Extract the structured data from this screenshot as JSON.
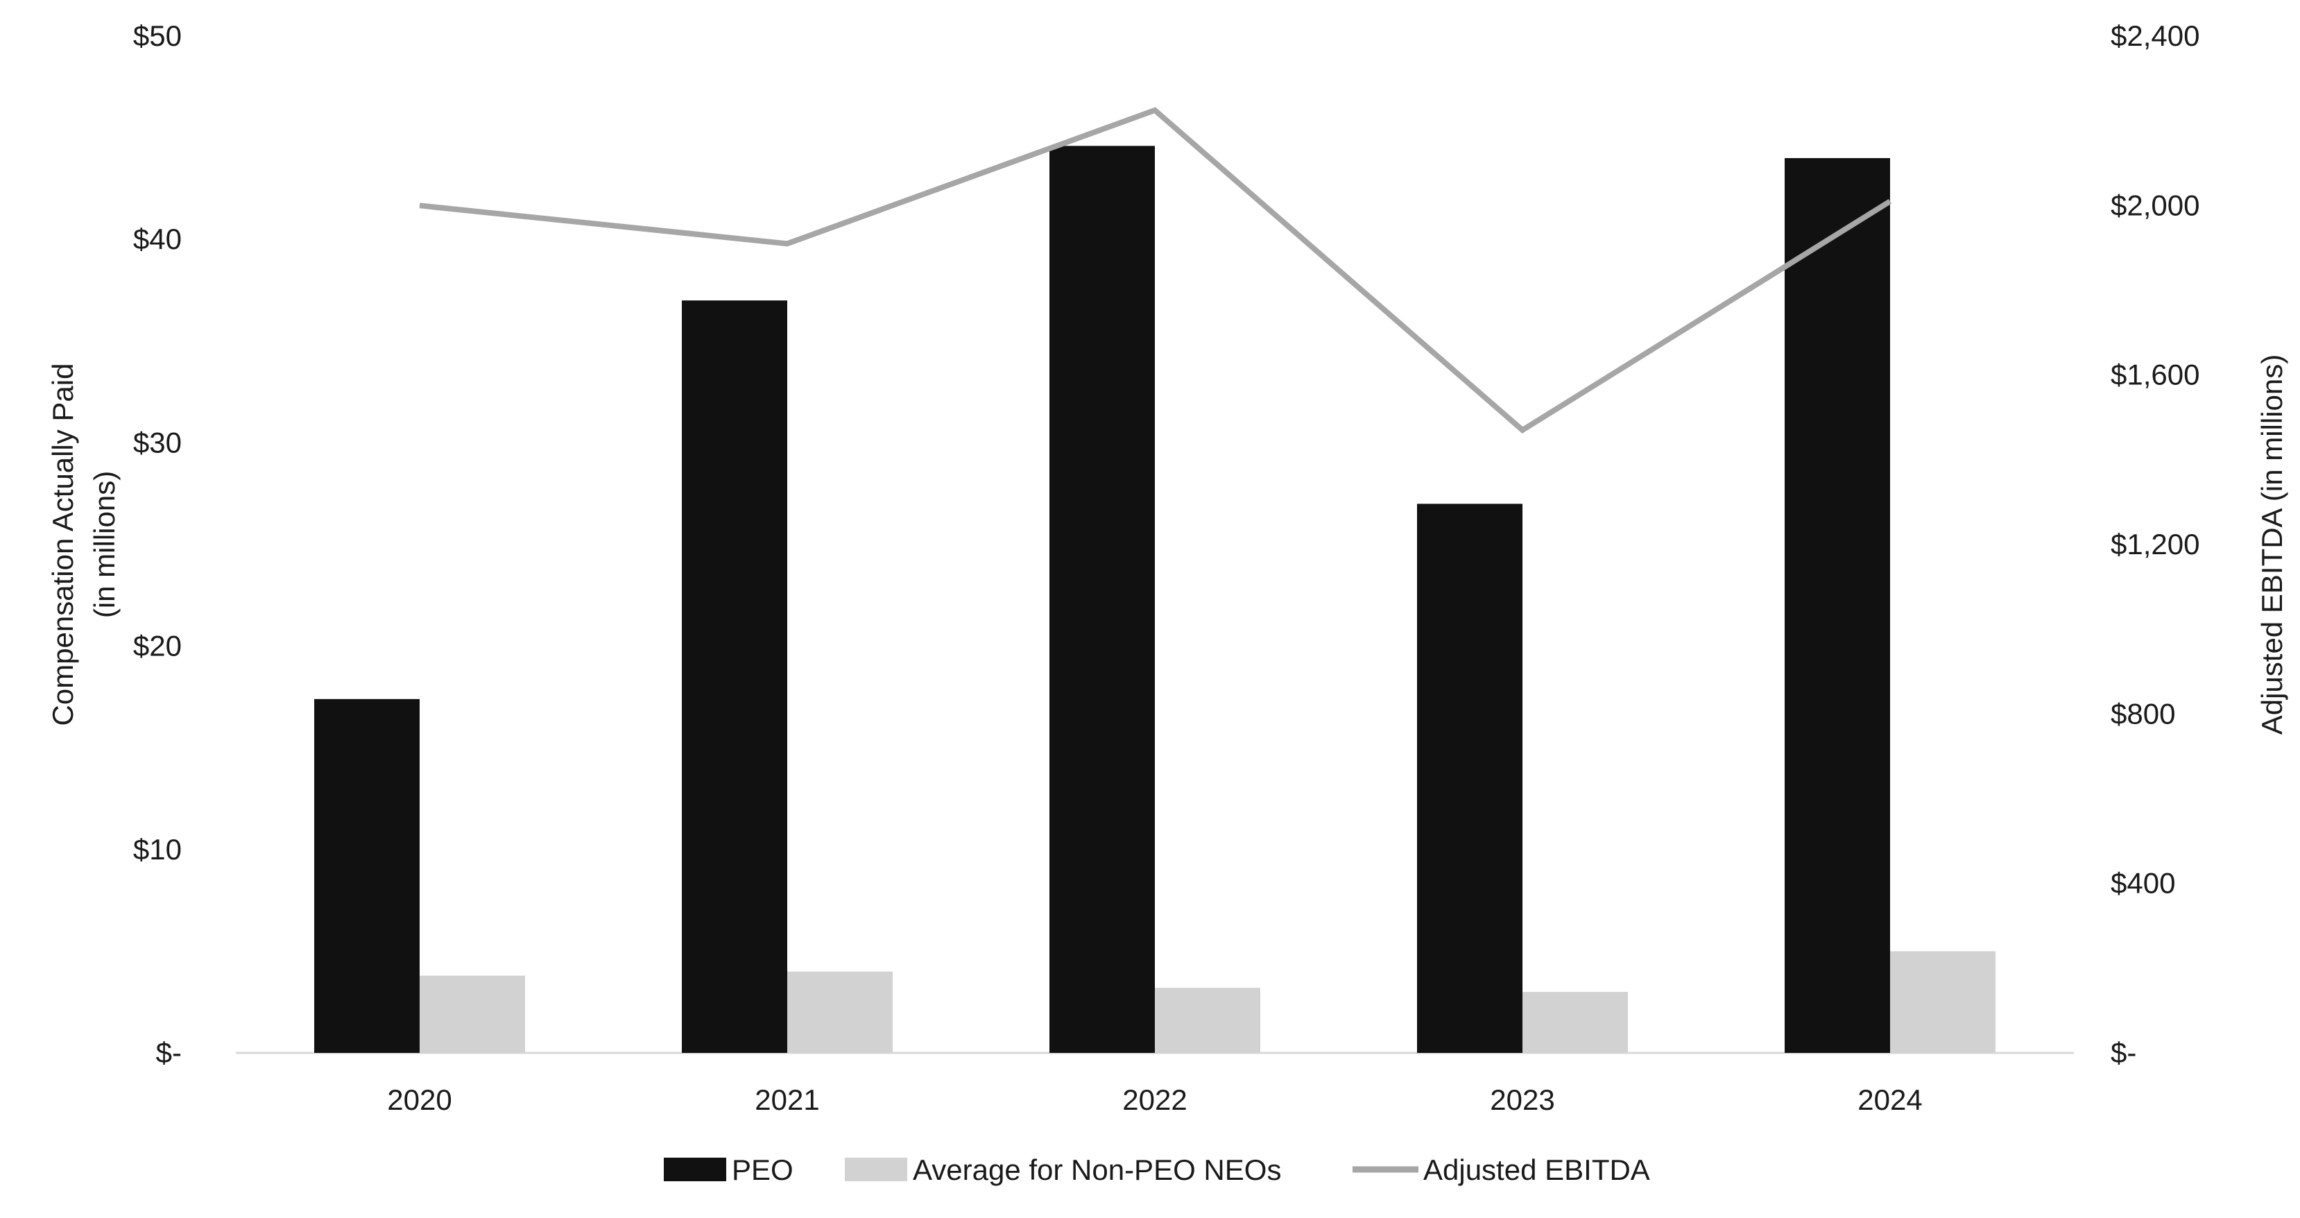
{
  "chart_data": {
    "type": "bar",
    "categories": [
      "2020",
      "2021",
      "2022",
      "2023",
      "2024"
    ],
    "series": [
      {
        "name": "PEO",
        "type": "bar",
        "axis": "left",
        "color": "#111111",
        "values": [
          17.4,
          37.0,
          44.6,
          27.0,
          44.0
        ]
      },
      {
        "name": "Average for Non-PEO NEOs",
        "type": "bar",
        "axis": "left",
        "color": "#d3d2d2",
        "values": [
          3.8,
          4.0,
          3.2,
          3.0,
          5.0
        ]
      },
      {
        "name": "Adjusted EBITDA",
        "type": "line",
        "axis": "right",
        "color": "#a6a6a6",
        "values": [
          2000,
          1910,
          2225,
          1470,
          2010
        ]
      }
    ],
    "y_left": {
      "label_line1": "Compensation Actually Paid",
      "label_line2": "(in millions)",
      "ylim": [
        0,
        50
      ],
      "ticks": [
        0,
        10,
        20,
        30,
        40,
        50
      ],
      "tick_labels": [
        "$-",
        "$10",
        "$20",
        "$30",
        "$40",
        "$50"
      ]
    },
    "y_right": {
      "label": "Adjusted EBITDA (in millions)",
      "ylim": [
        0,
        2400
      ],
      "ticks": [
        0,
        400,
        800,
        1200,
        1600,
        2000,
        2400
      ],
      "tick_labels": [
        "$-",
        "$400",
        "$800",
        "$1,200",
        "$1,600",
        "$2,000",
        "$2,400"
      ]
    },
    "grid": false,
    "legend": {
      "position": "bottom-center"
    }
  }
}
